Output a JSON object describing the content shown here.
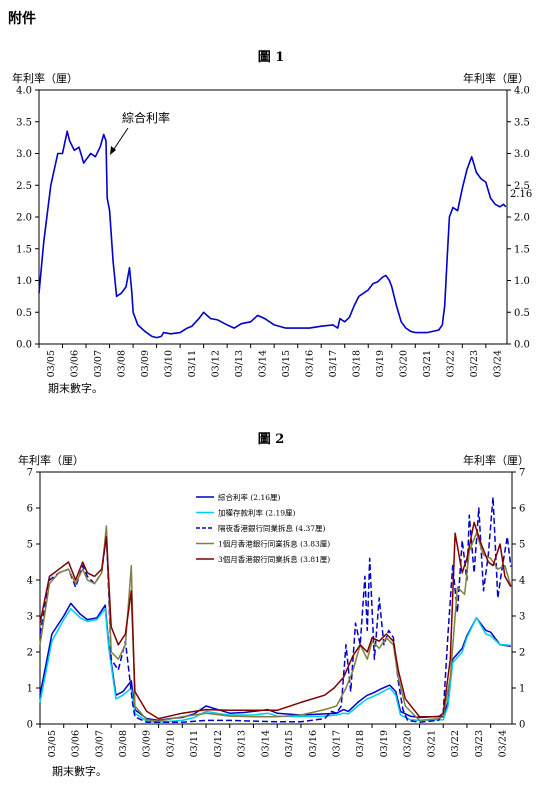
{
  "page": {
    "annex_label": "附件",
    "footnote": "期末數字。"
  },
  "chart_data": [
    {
      "type": "line",
      "title": "圖 1",
      "ylabel_left": "年利率（厘）",
      "ylabel_right": "年利率（厘）",
      "ylim": [
        0,
        4.0
      ],
      "yticks": [
        "0.0",
        "0.5",
        "1.0",
        "1.5",
        "2.0",
        "2.5",
        "3.0",
        "3.5",
        "4.0"
      ],
      "xlim": [
        2005.0,
        2024.9
      ],
      "xticks": [
        "03/05",
        "03/06",
        "03/07",
        "03/08",
        "03/09",
        "03/10",
        "03/11",
        "03/12",
        "03/13",
        "03/14",
        "03/15",
        "03/16",
        "03/17",
        "03/18",
        "03/19",
        "03/20",
        "03/21",
        "03/22",
        "03/23",
        "03/24"
      ],
      "annotation": "綜合利率",
      "end_label": "2.16",
      "series": [
        {
          "name": "綜合利率",
          "color": "#0000cc",
          "x": [
            2005.0,
            2005.2,
            2005.5,
            2005.8,
            2006.0,
            2006.2,
            2006.3,
            2006.5,
            2006.7,
            2006.9,
            2007.0,
            2007.2,
            2007.4,
            2007.6,
            2007.75,
            2007.85,
            2007.9,
            2008.0,
            2008.15,
            2008.3,
            2008.5,
            2008.7,
            2008.85,
            2008.95,
            2009.0,
            2009.2,
            2009.5,
            2009.8,
            2010.0,
            2010.2,
            2010.3,
            2010.6,
            2011.0,
            2011.3,
            2011.5,
            2011.8,
            2012.0,
            2012.3,
            2012.6,
            2013.0,
            2013.3,
            2013.6,
            2014.0,
            2014.3,
            2014.6,
            2015.0,
            2015.5,
            2016.0,
            2016.5,
            2017.0,
            2017.5,
            2017.7,
            2017.8,
            2018.0,
            2018.2,
            2018.4,
            2018.6,
            2018.8,
            2019.0,
            2019.2,
            2019.4,
            2019.6,
            2019.75,
            2019.9,
            2020.0,
            2020.2,
            2020.4,
            2020.6,
            2020.8,
            2021.0,
            2021.5,
            2022.0,
            2022.15,
            2022.25,
            2022.35,
            2022.45,
            2022.6,
            2022.8,
            2023.0,
            2023.2,
            2023.4,
            2023.6,
            2023.8,
            2024.0,
            2024.2,
            2024.4,
            2024.6,
            2024.75,
            2024.85
          ],
          "y": [
            0.8,
            1.6,
            2.5,
            3.0,
            3.0,
            3.35,
            3.2,
            3.05,
            3.1,
            2.85,
            2.9,
            3.0,
            2.95,
            3.1,
            3.3,
            3.2,
            2.3,
            2.1,
            1.3,
            0.75,
            0.8,
            0.9,
            1.2,
            0.8,
            0.5,
            0.3,
            0.2,
            0.12,
            0.1,
            0.12,
            0.18,
            0.16,
            0.18,
            0.25,
            0.28,
            0.4,
            0.5,
            0.4,
            0.38,
            0.3,
            0.25,
            0.32,
            0.35,
            0.45,
            0.4,
            0.3,
            0.25,
            0.25,
            0.25,
            0.28,
            0.3,
            0.25,
            0.4,
            0.35,
            0.42,
            0.6,
            0.75,
            0.8,
            0.85,
            0.95,
            0.98,
            1.05,
            1.08,
            1.0,
            0.9,
            0.6,
            0.35,
            0.25,
            0.2,
            0.18,
            0.18,
            0.22,
            0.3,
            0.6,
            1.3,
            2.0,
            2.15,
            2.1,
            2.45,
            2.75,
            2.95,
            2.7,
            2.6,
            2.55,
            2.3,
            2.2,
            2.16,
            2.2,
            2.16
          ]
        }
      ]
    },
    {
      "type": "line",
      "title": "圖 2",
      "ylabel_left": "年利率（厘）",
      "ylabel_right": "年利率（厘）",
      "ylim": [
        0,
        7
      ],
      "yticks": [
        "0",
        "1",
        "2",
        "3",
        "4",
        "5",
        "6",
        "7"
      ],
      "xlim": [
        2005.0,
        2024.9
      ],
      "xticks": [
        "03/05",
        "03/06",
        "03/07",
        "03/08",
        "03/09",
        "03/10",
        "03/11",
        "03/12",
        "03/13",
        "03/14",
        "03/15",
        "03/16",
        "03/17",
        "03/18",
        "03/19",
        "03/20",
        "03/21",
        "03/22",
        "03/23",
        "03/24"
      ],
      "legend_position": "top-center",
      "series": [
        {
          "name": "綜合利率 (2.16厘)",
          "color": "#0000cc",
          "dash": "none",
          "x": [
            2005.0,
            2005.5,
            2006.0,
            2006.3,
            2006.7,
            2007.0,
            2007.4,
            2007.75,
            2007.9,
            2008.2,
            2008.5,
            2008.85,
            2009.0,
            2009.5,
            2010.0,
            2010.6,
            2011.0,
            2011.5,
            2012.0,
            2012.6,
            2013.0,
            2013.6,
            2014.0,
            2014.6,
            2015.0,
            2016.0,
            2017.0,
            2017.5,
            2017.8,
            2018.0,
            2018.4,
            2018.8,
            2019.0,
            2019.4,
            2019.75,
            2020.0,
            2020.2,
            2020.6,
            2021.0,
            2022.0,
            2022.2,
            2022.4,
            2022.8,
            2023.0,
            2023.4,
            2023.8,
            2024.0,
            2024.4,
            2024.85
          ],
          "y": [
            0.8,
            2.5,
            3.0,
            3.35,
            3.05,
            2.9,
            2.95,
            3.3,
            2.2,
            0.8,
            0.9,
            1.2,
            0.4,
            0.15,
            0.1,
            0.16,
            0.18,
            0.28,
            0.5,
            0.38,
            0.3,
            0.32,
            0.35,
            0.4,
            0.3,
            0.25,
            0.28,
            0.3,
            0.4,
            0.35,
            0.6,
            0.8,
            0.85,
            0.98,
            1.08,
            0.9,
            0.35,
            0.22,
            0.18,
            0.22,
            0.6,
            1.8,
            2.1,
            2.45,
            2.95,
            2.6,
            2.55,
            2.2,
            2.16
          ]
        },
        {
          "name": "加權存款利率 (2.19厘)",
          "color": "#00ccee",
          "dash": "none",
          "x": [
            2005.0,
            2005.5,
            2006.0,
            2006.3,
            2006.7,
            2007.0,
            2007.4,
            2007.75,
            2007.9,
            2008.2,
            2008.5,
            2008.85,
            2009.0,
            2009.5,
            2010.0,
            2010.6,
            2011.0,
            2011.5,
            2012.0,
            2012.6,
            2013.0,
            2013.6,
            2014.0,
            2014.6,
            2015.0,
            2016.0,
            2017.0,
            2017.5,
            2017.8,
            2018.0,
            2018.4,
            2018.8,
            2019.0,
            2019.4,
            2019.75,
            2020.0,
            2020.2,
            2020.6,
            2021.0,
            2022.0,
            2022.2,
            2022.4,
            2022.8,
            2023.0,
            2023.4,
            2023.8,
            2024.0,
            2024.4,
            2024.85
          ],
          "y": [
            0.6,
            2.3,
            2.9,
            3.2,
            2.95,
            2.85,
            2.9,
            3.2,
            2.1,
            0.7,
            0.8,
            1.0,
            0.3,
            0.08,
            0.05,
            0.08,
            0.1,
            0.18,
            0.35,
            0.28,
            0.25,
            0.25,
            0.25,
            0.3,
            0.22,
            0.2,
            0.22,
            0.25,
            0.3,
            0.28,
            0.5,
            0.7,
            0.75,
            0.88,
            1.0,
            0.8,
            0.25,
            0.12,
            0.1,
            0.12,
            0.5,
            1.7,
            2.0,
            2.4,
            2.95,
            2.5,
            2.45,
            2.2,
            2.19
          ]
        },
        {
          "name": "隔夜香港銀行同業拆息 (4.37厘)",
          "color": "#0000cc",
          "dash": "6,3",
          "x": [
            2005.0,
            2005.4,
            2005.8,
            2006.2,
            2006.5,
            2006.8,
            2007.0,
            2007.3,
            2007.6,
            2007.8,
            2008.0,
            2008.3,
            2008.6,
            2008.9,
            2009.0,
            2009.5,
            2010.0,
            2011.0,
            2012.0,
            2013.0,
            2014.0,
            2015.0,
            2016.0,
            2017.0,
            2017.3,
            2017.5,
            2017.7,
            2017.9,
            2018.1,
            2018.3,
            2018.5,
            2018.7,
            2018.8,
            2018.9,
            2019.1,
            2019.3,
            2019.5,
            2019.7,
            2019.9,
            2020.1,
            2020.3,
            2020.5,
            2021.0,
            2021.8,
            2022.0,
            2022.2,
            2022.4,
            2022.6,
            2022.8,
            2023.0,
            2023.1,
            2023.3,
            2023.5,
            2023.7,
            2023.9,
            2024.1,
            2024.3,
            2024.5,
            2024.7,
            2024.85
          ],
          "y": [
            2.5,
            4.0,
            4.2,
            4.3,
            3.8,
            4.4,
            4.1,
            3.9,
            4.2,
            5.3,
            1.8,
            1.5,
            2.3,
            0.6,
            0.2,
            0.05,
            0.05,
            0.05,
            0.1,
            0.1,
            0.08,
            0.06,
            0.06,
            0.15,
            0.35,
            0.3,
            0.5,
            2.2,
            0.9,
            2.8,
            2.2,
            4.1,
            2.6,
            4.6,
            1.8,
            3.5,
            2.2,
            2.6,
            2.4,
            1.2,
            0.4,
            0.1,
            0.05,
            0.1,
            0.3,
            2.5,
            4.4,
            3.1,
            5.1,
            4.0,
            5.8,
            4.2,
            6.0,
            3.7,
            4.7,
            6.3,
            3.5,
            4.4,
            5.2,
            4.37
          ]
        },
        {
          "name": "1個月香港銀行同業拆息 (3.83厘)",
          "color": "#808040",
          "dash": "none",
          "x": [
            2005.0,
            2005.4,
            2005.8,
            2006.2,
            2006.5,
            2006.8,
            2007.0,
            2007.3,
            2007.6,
            2007.8,
            2008.0,
            2008.3,
            2008.6,
            2008.85,
            2009.0,
            2009.5,
            2010.0,
            2011.0,
            2012.0,
            2013.0,
            2014.0,
            2015.0,
            2016.0,
            2017.0,
            2017.5,
            2017.9,
            2018.2,
            2018.5,
            2018.8,
            2019.0,
            2019.3,
            2019.6,
            2019.9,
            2020.1,
            2020.4,
            2021.0,
            2021.8,
            2022.0,
            2022.3,
            2022.6,
            2022.9,
            2023.1,
            2023.4,
            2023.7,
            2024.0,
            2024.3,
            2024.6,
            2024.85
          ],
          "y": [
            2.2,
            3.9,
            4.2,
            4.3,
            3.9,
            4.3,
            4.0,
            3.9,
            4.2,
            5.5,
            2.0,
            1.8,
            2.2,
            4.4,
            0.5,
            0.12,
            0.08,
            0.2,
            0.3,
            0.22,
            0.2,
            0.2,
            0.25,
            0.4,
            0.5,
            1.0,
            1.5,
            2.2,
            1.8,
            2.3,
            2.1,
            2.4,
            2.2,
            1.3,
            0.5,
            0.1,
            0.15,
            0.2,
            1.3,
            3.8,
            3.6,
            4.8,
            5.3,
            4.7,
            4.6,
            4.3,
            4.4,
            3.83
          ]
        },
        {
          "name": "3個月香港銀行同業拆息 (3.81厘)",
          "color": "#800000",
          "dash": "none",
          "x": [
            2005.0,
            2005.4,
            2005.8,
            2006.2,
            2006.5,
            2006.8,
            2007.0,
            2007.3,
            2007.6,
            2007.8,
            2008.0,
            2008.3,
            2008.6,
            2008.85,
            2009.0,
            2009.5,
            2010.0,
            2011.0,
            2012.0,
            2013.0,
            2014.0,
            2015.0,
            2016.0,
            2017.0,
            2017.4,
            2017.8,
            2018.2,
            2018.5,
            2018.8,
            2019.0,
            2019.3,
            2019.6,
            2019.9,
            2020.1,
            2020.4,
            2021.0,
            2021.8,
            2022.0,
            2022.3,
            2022.5,
            2022.8,
            2023.0,
            2023.3,
            2023.6,
            2023.9,
            2024.1,
            2024.4,
            2024.6,
            2024.85
          ],
          "y": [
            2.8,
            4.1,
            4.3,
            4.5,
            4.0,
            4.5,
            4.2,
            4.1,
            4.3,
            5.2,
            2.7,
            2.2,
            2.5,
            3.7,
            0.9,
            0.35,
            0.15,
            0.3,
            0.4,
            0.38,
            0.38,
            0.38,
            0.6,
            0.8,
            1.0,
            1.3,
            1.9,
            2.2,
            2.0,
            2.4,
            2.3,
            2.5,
            2.3,
            1.5,
            0.7,
            0.2,
            0.2,
            0.3,
            1.8,
            5.3,
            4.2,
            4.6,
            5.6,
            5.0,
            4.5,
            4.4,
            5.0,
            4.1,
            3.81
          ]
        }
      ]
    }
  ]
}
